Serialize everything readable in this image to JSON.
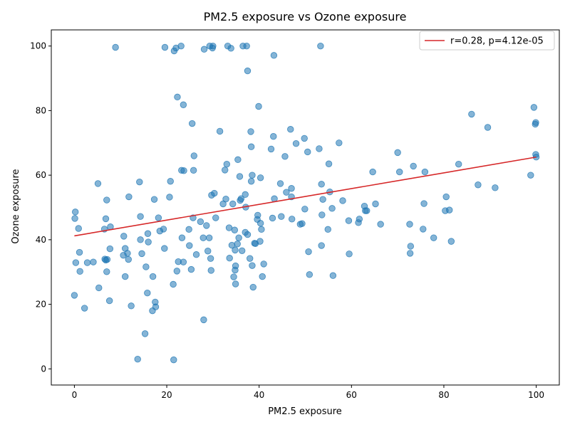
{
  "chart_data": {
    "type": "scatter",
    "title": "PM2.5 exposure vs Ozone exposure",
    "xlabel": "PM2.5 exposure",
    "ylabel": "Ozone exposure",
    "xlim": [
      -5,
      105
    ],
    "ylim": [
      -5,
      105
    ],
    "xticks": [
      0,
      20,
      40,
      60,
      80,
      100
    ],
    "yticks": [
      0,
      20,
      40,
      60,
      80,
      100
    ],
    "grid": false,
    "legend_position": "top-right",
    "colors": {
      "points": "#1f77b4",
      "fit_line": "#d62728"
    },
    "fit_line": {
      "label": "r=0.28, p=4.12e-05",
      "x": [
        0,
        100
      ],
      "y": [
        41.2,
        65.6
      ]
    },
    "points": [
      [
        0.2,
        48.6
      ],
      [
        0.1,
        46.6
      ],
      [
        0.9,
        43.5
      ],
      [
        0.3,
        32.9
      ],
      [
        1.1,
        36.1
      ],
      [
        1.2,
        30.2
      ],
      [
        0,
        22.8
      ],
      [
        2.2,
        18.8
      ],
      [
        2.8,
        32.9
      ],
      [
        4.1,
        33.1
      ],
      [
        5.1,
        57.4
      ],
      [
        5.3,
        25.1
      ],
      [
        6.5,
        43.3
      ],
      [
        6.8,
        46.5
      ],
      [
        7.0,
        52.3
      ],
      [
        6.6,
        34.0
      ],
      [
        6.8,
        33.7
      ],
      [
        7.1,
        33.9
      ],
      [
        7.0,
        30.1
      ],
      [
        7.6,
        21.1
      ],
      [
        7.7,
        37.2
      ],
      [
        7.8,
        44.0
      ],
      [
        8.9,
        99.6
      ],
      [
        10.7,
        41.1
      ],
      [
        10.6,
        35.2
      ],
      [
        11.0,
        37.3
      ],
      [
        11.0,
        28.6
      ],
      [
        11.5,
        35.8
      ],
      [
        11.7,
        33.9
      ],
      [
        11.8,
        53.3
      ],
      [
        12.3,
        19.5
      ],
      [
        13.7,
        3.0
      ],
      [
        14.1,
        57.9
      ],
      [
        14.3,
        47.2
      ],
      [
        14.3,
        40.0
      ],
      [
        14.6,
        35.7
      ],
      [
        15.3,
        10.9
      ],
      [
        15.5,
        31.6
      ],
      [
        15.8,
        23.5
      ],
      [
        15.9,
        41.9
      ],
      [
        16.0,
        39.3
      ],
      [
        16.9,
        18.0
      ],
      [
        17.0,
        28.6
      ],
      [
        17.3,
        52.5
      ],
      [
        17.5,
        20.7
      ],
      [
        17.6,
        19.2
      ],
      [
        18.2,
        46.8
      ],
      [
        18.5,
        42.7
      ],
      [
        19.3,
        43.3
      ],
      [
        19.5,
        37.3
      ],
      [
        19.6,
        99.6
      ],
      [
        20.6,
        53.2
      ],
      [
        20.8,
        58.1
      ],
      [
        21.4,
        26.2
      ],
      [
        21.5,
        2.8
      ],
      [
        21.6,
        98.5
      ],
      [
        22.0,
        99.4
      ],
      [
        22.3,
        84.2
      ],
      [
        22.2,
        30.3
      ],
      [
        22.5,
        33.2
      ],
      [
        23.1,
        100
      ],
      [
        23.2,
        61.5
      ],
      [
        23.3,
        40.6
      ],
      [
        23.6,
        81.8
      ],
      [
        23.7,
        61.4
      ],
      [
        23.6,
        33.1
      ],
      [
        24.8,
        43.2
      ],
      [
        24.9,
        38.2
      ],
      [
        25.3,
        30.8
      ],
      [
        25.5,
        76.0
      ],
      [
        25.7,
        46.8
      ],
      [
        25.8,
        61.5
      ],
      [
        25.9,
        66.0
      ],
      [
        26.4,
        35.4
      ],
      [
        27.3,
        45.6
      ],
      [
        27.9,
        40.6
      ],
      [
        28.0,
        15.2
      ],
      [
        28.1,
        99.0
      ],
      [
        28.6,
        44.4
      ],
      [
        28.9,
        36.5
      ],
      [
        29.2,
        40.6
      ],
      [
        29.3,
        100
      ],
      [
        29.5,
        34.2
      ],
      [
        29.6,
        30.5
      ],
      [
        29.7,
        53.8
      ],
      [
        29.9,
        99.4
      ],
      [
        30.0,
        100
      ],
      [
        30.3,
        54.4
      ],
      [
        30.6,
        46.8
      ],
      [
        31.5,
        73.6
      ],
      [
        32.2,
        51.1
      ],
      [
        32.6,
        61.6
      ],
      [
        32.8,
        52.6
      ],
      [
        33.0,
        63.4
      ],
      [
        33.2,
        100
      ],
      [
        33.5,
        43.7
      ],
      [
        33.6,
        34.3
      ],
      [
        33.9,
        99.3
      ],
      [
        34.1,
        38.3
      ],
      [
        34.3,
        51.1
      ],
      [
        34.5,
        28.5
      ],
      [
        34.7,
        43.0
      ],
      [
        34.8,
        36.8
      ],
      [
        34.8,
        30.6
      ],
      [
        34.9,
        31.9
      ],
      [
        34.9,
        26.3
      ],
      [
        35.3,
        38.7
      ],
      [
        35.4,
        64.8
      ],
      [
        35.6,
        40.6
      ],
      [
        35.8,
        59.6
      ],
      [
        35.9,
        52.2
      ],
      [
        36.1,
        52.7
      ],
      [
        36.3,
        36.6
      ],
      [
        36.5,
        100
      ],
      [
        37.0,
        42.3
      ],
      [
        37.0,
        54.0
      ],
      [
        37.1,
        50.1
      ],
      [
        37.3,
        100
      ],
      [
        37.5,
        92.3
      ],
      [
        37.5,
        41.6
      ],
      [
        38.0,
        34.2
      ],
      [
        38.2,
        73.5
      ],
      [
        38.3,
        58.1
      ],
      [
        38.3,
        68.8
      ],
      [
        38.5,
        60.0
      ],
      [
        38.5,
        32.0
      ],
      [
        38.7,
        25.3
      ],
      [
        39.0,
        38.9
      ],
      [
        39.2,
        38.8
      ],
      [
        39.6,
        46.3
      ],
      [
        39.7,
        47.6
      ],
      [
        39.9,
        81.3
      ],
      [
        40.2,
        39.5
      ],
      [
        40.3,
        59.2
      ],
      [
        40.3,
        45.1
      ],
      [
        40.5,
        43.2
      ],
      [
        40.7,
        28.6
      ],
      [
        41.0,
        32.5
      ],
      [
        42.6,
        68.1
      ],
      [
        42.9,
        46.7
      ],
      [
        43.1,
        72.0
      ],
      [
        43.2,
        97.1
      ],
      [
        43.3,
        52.7
      ],
      [
        44.6,
        57.4
      ],
      [
        44.8,
        47.2
      ],
      [
        45.6,
        65.8
      ],
      [
        45.9,
        54.7
      ],
      [
        46.8,
        74.2
      ],
      [
        47.0,
        55.9
      ],
      [
        47.0,
        53.3
      ],
      [
        47.1,
        46.4
      ],
      [
        48.0,
        69.8
      ],
      [
        48.9,
        44.8
      ],
      [
        49.3,
        45.0
      ],
      [
        49.8,
        71.4
      ],
      [
        49.9,
        49.5
      ],
      [
        50.5,
        67.2
      ],
      [
        50.7,
        36.3
      ],
      [
        50.9,
        29.2
      ],
      [
        53.0,
        68.2
      ],
      [
        53.3,
        100
      ],
      [
        53.5,
        57.2
      ],
      [
        53.5,
        38.2
      ],
      [
        53.6,
        47.7
      ],
      [
        53.8,
        52.5
      ],
      [
        54.9,
        43.2
      ],
      [
        55.1,
        63.5
      ],
      [
        55.3,
        54.8
      ],
      [
        55.8,
        49.7
      ],
      [
        56.0,
        28.9
      ],
      [
        57.3,
        70.0
      ],
      [
        58.1,
        52.1
      ],
      [
        59.4,
        45.9
      ],
      [
        59.5,
        35.6
      ],
      [
        61.5,
        45.3
      ],
      [
        61.7,
        46.4
      ],
      [
        62.8,
        50.4
      ],
      [
        63.0,
        49.0
      ],
      [
        63.3,
        49.0
      ],
      [
        64.6,
        61.0
      ],
      [
        65.2,
        51.1
      ],
      [
        66.3,
        44.8
      ],
      [
        70.0,
        67.0
      ],
      [
        70.4,
        61.0
      ],
      [
        72.6,
        44.8
      ],
      [
        72.7,
        35.8
      ],
      [
        72.8,
        38.0
      ],
      [
        73.4,
        62.8
      ],
      [
        75.5,
        43.3
      ],
      [
        75.7,
        51.2
      ],
      [
        75.9,
        61.0
      ],
      [
        77.8,
        40.6
      ],
      [
        80.3,
        49.0
      ],
      [
        80.5,
        53.3
      ],
      [
        81.2,
        49.2
      ],
      [
        81.6,
        39.5
      ],
      [
        83.2,
        63.4
      ],
      [
        86.0,
        78.9
      ],
      [
        87.4,
        57.0
      ],
      [
        89.5,
        74.8
      ],
      [
        91.1,
        56.1
      ],
      [
        98.8,
        60.0
      ],
      [
        99.5,
        81.0
      ],
      [
        99.9,
        76.3
      ],
      [
        99.8,
        75.8
      ],
      [
        99.9,
        66.4
      ],
      [
        100,
        65.6
      ]
    ]
  }
}
